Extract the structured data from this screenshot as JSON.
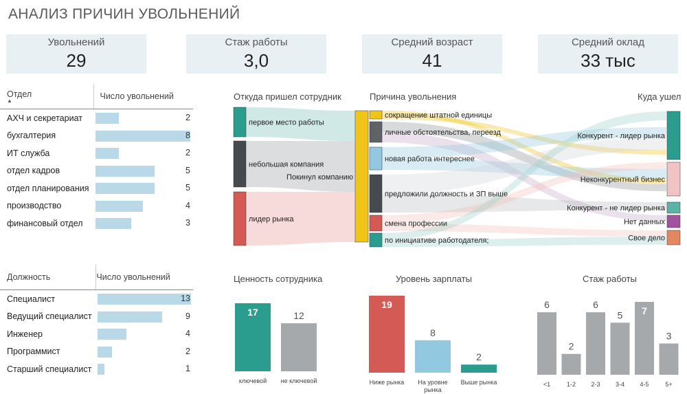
{
  "title": "АНАЛИЗ ПРИЧИН УВОЛЬНЕНИЙ",
  "kpis": [
    {
      "label": "Увольнений",
      "value": "29"
    },
    {
      "label": "Стаж работы",
      "value": "3,0"
    },
    {
      "label": "Средний возраст",
      "value": "41"
    },
    {
      "label": "Средний оклад",
      "value": "33 тыс"
    }
  ],
  "dept_table": {
    "col1": "Отдел",
    "col2": "Число увольнений",
    "sort_icon": "sort-up-icon",
    "rows": [
      {
        "name": "АХЧ и секретариат",
        "count": 2
      },
      {
        "name": "бухгалтерия",
        "count": 8
      },
      {
        "name": "ИТ служба",
        "count": 2
      },
      {
        "name": "отдел кадров",
        "count": 5
      },
      {
        "name": "отдел планирования",
        "count": 5
      },
      {
        "name": "производство",
        "count": 4
      },
      {
        "name": "финансовый отдел",
        "count": 3
      }
    ],
    "max": 8
  },
  "pos_table": {
    "col1": "Должность",
    "col2": "Число увольнений",
    "rows": [
      {
        "name": "Специалист",
        "count": 13
      },
      {
        "name": "Ведущий специалист",
        "count": 9
      },
      {
        "name": "Инженер",
        "count": 4
      },
      {
        "name": "Программист",
        "count": 2
      },
      {
        "name": "Старший специалист",
        "count": 1
      }
    ],
    "max": 13
  },
  "sankey": {
    "header_source": "Откуда пришел сотрудник",
    "header_reason": "Причина увольнения",
    "header_dest": "Куда ушел",
    "center_label": "Покинул компанию",
    "sources": [
      {
        "name": "первое место работы",
        "color": "#2a9d8f"
      },
      {
        "name": "небольшая компания",
        "color": "#444a4e"
      },
      {
        "name": "лидер рынка",
        "color": "#d45a55"
      }
    ],
    "reasons": [
      {
        "name": "сокращение штатной единицы",
        "color": "#f0c419"
      },
      {
        "name": "личные обстоятельства, переезд",
        "color": "#5f6366"
      },
      {
        "name": "новая работа интереснее",
        "color": "#93c9e0"
      },
      {
        "name": "предложили должность и ЗП выше",
        "color": "#444a4e"
      },
      {
        "name": "смена профессии",
        "color": "#d45a55"
      },
      {
        "name": "по инициативе работодателя;",
        "color": "#2a9d8f"
      }
    ],
    "destinations": [
      {
        "name": "Конкурент - лидер рынка",
        "color": "#2a9d8f"
      },
      {
        "name": "Неконкурентный бизнес",
        "color": "#f0c4c4"
      },
      {
        "name": "Конкурент - не лидер рынка",
        "color": "#5bb3a6"
      },
      {
        "name": "Нет данных",
        "color": "#a0529e"
      },
      {
        "name": "Свое дело",
        "color": "#e4875f"
      }
    ],
    "center_color": "#f0c419"
  },
  "chart_data": [
    {
      "type": "bar",
      "title": "Ценность сотрудника",
      "categories": [
        "ключевой",
        "не ключевой"
      ],
      "values": [
        17,
        12
      ],
      "colors": [
        "#2a9d8f",
        "#a6a9ab"
      ],
      "label_colors": [
        "#ffffff",
        "#555555"
      ]
    },
    {
      "type": "bar",
      "title": "Уровень зарплаты",
      "categories": [
        "Ниже рынка",
        "На уровне рынка",
        "Выше рынка"
      ],
      "values": [
        19,
        8,
        2
      ],
      "colors": [
        "#d45a55",
        "#93c9e0",
        "#2a9d8f"
      ],
      "label_colors": [
        "#ffffff",
        "#555555",
        "#555555"
      ]
    },
    {
      "type": "bar",
      "title": "Стаж работы",
      "categories": [
        "<1",
        "1-2",
        "2-3",
        "3-4",
        "4-5",
        "5+"
      ],
      "values": [
        6,
        2,
        6,
        5,
        7,
        3
      ],
      "colors": [
        "#a6a9ab",
        "#a6a9ab",
        "#a6a9ab",
        "#a6a9ab",
        "#a6a9ab",
        "#a6a9ab"
      ],
      "label_colors": [
        "#555555",
        "#555555",
        "#555555",
        "#555555",
        "#ffffff",
        "#555555"
      ]
    }
  ]
}
